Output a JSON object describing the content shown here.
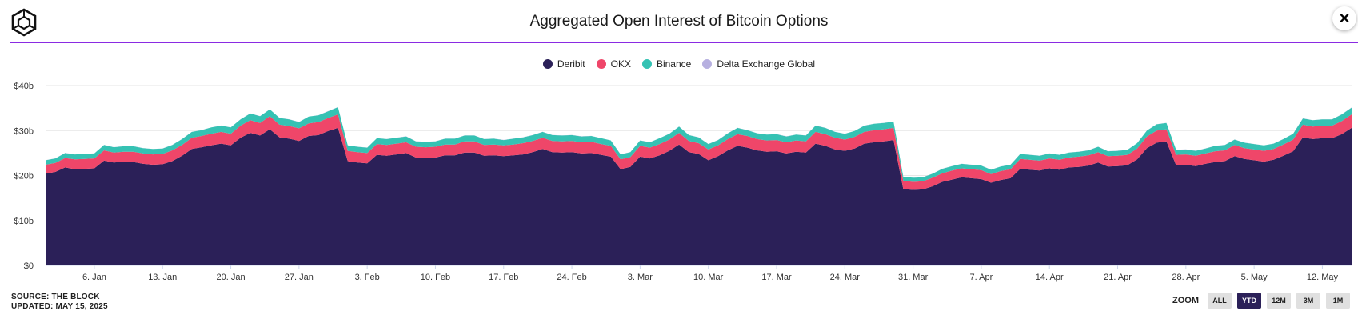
{
  "header": {
    "title": "Aggregated Open Interest of Bitcoin Options",
    "close_label": "×"
  },
  "legend": [
    "Deribit",
    "OKX",
    "Binance",
    "Delta Exchange Global"
  ],
  "footer": {
    "source": "SOURCE: THE BLOCK",
    "updated": "UPDATED: MAY 15, 2025"
  },
  "zoom": {
    "label": "ZOOM",
    "buttons": [
      "ALL",
      "YTD",
      "12M",
      "3M",
      "1M"
    ],
    "active": "YTD"
  },
  "colors": {
    "deribit": "#2b2058",
    "okx": "#ef4669",
    "binance": "#35c2b3",
    "delta": "#b7b0e0",
    "rule": "#8a2be2"
  },
  "chart_data": {
    "type": "area",
    "stacked": true,
    "title": "Aggregated Open Interest of Bitcoin Options",
    "x": [
      "Jan 1",
      "Jan 2",
      "Jan 3",
      "Jan 4",
      "Jan 5",
      "Jan 6",
      "Jan 7",
      "Jan 8",
      "Jan 9",
      "Jan 10",
      "Jan 11",
      "Jan 12",
      "Jan 13",
      "Jan 14",
      "Jan 15",
      "Jan 16",
      "Jan 17",
      "Jan 18",
      "Jan 19",
      "Jan 20",
      "Jan 21",
      "Jan 22",
      "Jan 23",
      "Jan 24",
      "Jan 25",
      "Jan 26",
      "Jan 27",
      "Jan 28",
      "Jan 29",
      "Jan 30",
      "Jan 31",
      "Feb 1",
      "Feb 2",
      "Feb 3",
      "Feb 4",
      "Feb 5",
      "Feb 6",
      "Feb 7",
      "Feb 8",
      "Feb 9",
      "Feb 10",
      "Feb 11",
      "Feb 12",
      "Feb 13",
      "Feb 14",
      "Feb 15",
      "Feb 16",
      "Feb 17",
      "Feb 18",
      "Feb 19",
      "Feb 20",
      "Feb 21",
      "Feb 22",
      "Feb 23",
      "Feb 24",
      "Feb 25",
      "Feb 26",
      "Feb 27",
      "Feb 28",
      "Mar 1",
      "Mar 2",
      "Mar 3",
      "Mar 4",
      "Mar 5",
      "Mar 6",
      "Mar 7",
      "Mar 8",
      "Mar 9",
      "Mar 10",
      "Mar 11",
      "Mar 12",
      "Mar 13",
      "Mar 14",
      "Mar 15",
      "Mar 16",
      "Mar 17",
      "Mar 18",
      "Mar 19",
      "Mar 20",
      "Mar 21",
      "Mar 22",
      "Mar 23",
      "Mar 24",
      "Mar 25",
      "Mar 26",
      "Mar 27",
      "Mar 28",
      "Mar 29",
      "Mar 30",
      "Mar 31",
      "Apr 1",
      "Apr 2",
      "Apr 3",
      "Apr 4",
      "Apr 5",
      "Apr 6",
      "Apr 7",
      "Apr 8",
      "Apr 9",
      "Apr 10",
      "Apr 11",
      "Apr 12",
      "Apr 13",
      "Apr 14",
      "Apr 15",
      "Apr 16",
      "Apr 17",
      "Apr 18",
      "Apr 19",
      "Apr 20",
      "Apr 21",
      "Apr 22",
      "Apr 23",
      "Apr 24",
      "Apr 25",
      "Apr 26",
      "Apr 27",
      "Apr 28",
      "Apr 29",
      "Apr 30",
      "May 1",
      "May 2",
      "May 3",
      "May 4",
      "May 5",
      "May 6",
      "May 7",
      "May 8",
      "May 9",
      "May 10",
      "May 11",
      "May 12",
      "May 13",
      "May 14",
      "May 15"
    ],
    "series": [
      {
        "name": "Deribit",
        "values": [
          20.4,
          20.8,
          21.8,
          21.4,
          21.5,
          21.6,
          23.3,
          22.9,
          23.1,
          23.0,
          22.6,
          22.4,
          22.5,
          23.2,
          24.4,
          25.9,
          26.3,
          26.7,
          27.1,
          26.7,
          28.4,
          29.5,
          28.9,
          30.3,
          28.5,
          28.2,
          27.7,
          28.8,
          29.0,
          29.9,
          30.6,
          23.2,
          22.9,
          22.7,
          24.6,
          24.4,
          24.7,
          25.0,
          24.0,
          23.9,
          24.0,
          24.5,
          24.5,
          25.1,
          25.1,
          24.4,
          24.5,
          24.3,
          24.5,
          24.7,
          25.2,
          25.9,
          25.2,
          25.1,
          25.2,
          24.9,
          25.0,
          24.6,
          24.2,
          21.4,
          21.9,
          24.2,
          23.8,
          24.5,
          25.5,
          26.9,
          25.2,
          24.8,
          23.4,
          24.3,
          25.6,
          26.6,
          26.2,
          25.6,
          25.3,
          25.4,
          24.9,
          25.3,
          25.1,
          27.1,
          26.6,
          25.8,
          25.5,
          26.0,
          27.1,
          27.4,
          27.6,
          27.9,
          17.0,
          16.8,
          16.9,
          17.6,
          18.6,
          19.1,
          19.6,
          19.4,
          19.2,
          18.4,
          19.0,
          19.4,
          21.5,
          21.3,
          21.1,
          21.6,
          21.3,
          21.8,
          21.9,
          22.2,
          22.9,
          22.0,
          22.1,
          22.3,
          23.6,
          26.1,
          27.3,
          27.6,
          22.3,
          22.4,
          22.1,
          22.6,
          23.0,
          23.2,
          24.3,
          23.7,
          23.4,
          23.1,
          23.5,
          24.4,
          25.4,
          28.5,
          28.1,
          28.3,
          28.3,
          29.2,
          30.6
        ]
      },
      {
        "name": "OKX",
        "values": [
          2.0,
          2.0,
          2.1,
          2.2,
          2.2,
          2.2,
          2.3,
          2.2,
          2.2,
          2.3,
          2.3,
          2.3,
          2.3,
          2.4,
          2.4,
          2.5,
          2.5,
          2.6,
          2.6,
          2.6,
          2.7,
          2.8,
          2.8,
          2.9,
          2.8,
          2.8,
          2.8,
          2.8,
          2.9,
          2.9,
          3.0,
          2.3,
          2.3,
          2.3,
          2.4,
          2.4,
          2.4,
          2.4,
          2.4,
          2.4,
          2.4,
          2.4,
          2.4,
          2.5,
          2.5,
          2.4,
          2.4,
          2.4,
          2.4,
          2.5,
          2.5,
          2.5,
          2.5,
          2.5,
          2.5,
          2.5,
          2.5,
          2.4,
          2.4,
          2.2,
          2.2,
          2.4,
          2.4,
          2.5,
          2.5,
          2.6,
          2.5,
          2.4,
          2.4,
          2.4,
          2.5,
          2.6,
          2.6,
          2.5,
          2.5,
          2.5,
          2.5,
          2.5,
          2.5,
          2.6,
          2.6,
          2.6,
          2.5,
          2.6,
          2.6,
          2.7,
          2.7,
          2.7,
          1.8,
          1.8,
          1.8,
          1.9,
          1.9,
          2.0,
          2.0,
          2.0,
          2.0,
          1.9,
          2.0,
          2.0,
          2.2,
          2.2,
          2.2,
          2.2,
          2.2,
          2.2,
          2.3,
          2.3,
          2.3,
          2.3,
          2.3,
          2.3,
          2.4,
          2.6,
          2.7,
          2.7,
          2.3,
          2.3,
          2.3,
          2.3,
          2.4,
          2.4,
          2.5,
          2.4,
          2.4,
          2.4,
          2.4,
          2.5,
          2.6,
          2.8,
          2.8,
          2.8,
          2.8,
          2.9,
          3.0
        ]
      },
      {
        "name": "Binance",
        "values": [
          1.0,
          1.0,
          1.1,
          1.1,
          1.1,
          1.1,
          1.2,
          1.2,
          1.2,
          1.2,
          1.2,
          1.2,
          1.2,
          1.2,
          1.3,
          1.3,
          1.3,
          1.4,
          1.4,
          1.4,
          1.4,
          1.5,
          1.5,
          1.5,
          1.5,
          1.5,
          1.4,
          1.5,
          1.5,
          1.5,
          1.6,
          1.2,
          1.2,
          1.2,
          1.3,
          1.3,
          1.3,
          1.3,
          1.2,
          1.2,
          1.2,
          1.3,
          1.3,
          1.3,
          1.3,
          1.3,
          1.3,
          1.2,
          1.3,
          1.3,
          1.3,
          1.3,
          1.3,
          1.3,
          1.3,
          1.3,
          1.3,
          1.3,
          1.2,
          1.1,
          1.1,
          1.2,
          1.2,
          1.3,
          1.3,
          1.4,
          1.3,
          1.3,
          1.2,
          1.2,
          1.3,
          1.4,
          1.3,
          1.3,
          1.3,
          1.3,
          1.3,
          1.3,
          1.3,
          1.4,
          1.4,
          1.3,
          1.3,
          1.3,
          1.4,
          1.4,
          1.4,
          1.4,
          0.9,
          0.9,
          0.9,
          0.9,
          1.0,
          1.0,
          1.0,
          1.0,
          1.0,
          1.0,
          1.0,
          1.0,
          1.1,
          1.1,
          1.1,
          1.1,
          1.1,
          1.1,
          1.1,
          1.1,
          1.2,
          1.1,
          1.1,
          1.1,
          1.2,
          1.3,
          1.4,
          1.4,
          1.1,
          1.1,
          1.1,
          1.1,
          1.2,
          1.2,
          1.2,
          1.2,
          1.2,
          1.2,
          1.2,
          1.2,
          1.3,
          1.4,
          1.4,
          1.4,
          1.4,
          1.5,
          1.5
        ]
      },
      {
        "name": "Delta Exchange Global",
        "values": [
          0.02,
          0.02,
          0.02,
          0.02,
          0.02,
          0.02,
          0.02,
          0.02,
          0.02,
          0.02,
          0.02,
          0.02,
          0.02,
          0.02,
          0.02,
          0.02,
          0.02,
          0.02,
          0.02,
          0.02,
          0.02,
          0.02,
          0.02,
          0.02,
          0.02,
          0.02,
          0.02,
          0.02,
          0.02,
          0.02,
          0.02,
          0.02,
          0.02,
          0.02,
          0.02,
          0.02,
          0.02,
          0.02,
          0.02,
          0.02,
          0.02,
          0.02,
          0.02,
          0.02,
          0.02,
          0.02,
          0.02,
          0.02,
          0.02,
          0.02,
          0.02,
          0.02,
          0.02,
          0.02,
          0.02,
          0.02,
          0.02,
          0.02,
          0.02,
          0.02,
          0.02,
          0.02,
          0.02,
          0.02,
          0.02,
          0.02,
          0.02,
          0.02,
          0.02,
          0.02,
          0.02,
          0.02,
          0.02,
          0.02,
          0.02,
          0.02,
          0.02,
          0.02,
          0.02,
          0.02,
          0.02,
          0.02,
          0.02,
          0.02,
          0.02,
          0.02,
          0.02,
          0.02,
          0.02,
          0.02,
          0.02,
          0.02,
          0.02,
          0.02,
          0.02,
          0.02,
          0.02,
          0.02,
          0.02,
          0.02,
          0.02,
          0.02,
          0.02,
          0.02,
          0.02,
          0.02,
          0.02,
          0.02,
          0.02,
          0.02,
          0.02,
          0.02,
          0.02,
          0.02,
          0.02,
          0.02,
          0.02,
          0.02,
          0.02,
          0.02,
          0.02,
          0.02,
          0.02,
          0.02,
          0.02,
          0.02,
          0.02,
          0.02,
          0.02,
          0.02,
          0.02,
          0.02,
          0.02,
          0.02,
          0.02
        ]
      }
    ],
    "xticks": [
      "6. Jan",
      "13. Jan",
      "20. Jan",
      "27. Jan",
      "3. Feb",
      "10. Feb",
      "17. Feb",
      "24. Feb",
      "3. Mar",
      "10. Mar",
      "17. Mar",
      "24. Mar",
      "31. Mar",
      "7. Apr",
      "14. Apr",
      "21. Apr",
      "28. Apr",
      "5. May",
      "12. May"
    ],
    "xtick_positions": [
      "Jan 6",
      "Jan 13",
      "Jan 20",
      "Jan 27",
      "Feb 3",
      "Feb 10",
      "Feb 17",
      "Feb 24",
      "Mar 3",
      "Mar 10",
      "Mar 17",
      "Mar 24",
      "Mar 31",
      "Apr 7",
      "Apr 14",
      "Apr 21",
      "Apr 28",
      "May 5",
      "May 12"
    ],
    "yticks": [
      0,
      10,
      20,
      30,
      40
    ],
    "ytick_labels": [
      "$0",
      "$10b",
      "$20b",
      "$30b",
      "$40b"
    ],
    "ylim": [
      0,
      40
    ],
    "grid": "horizontal",
    "legend_position": "top-center"
  }
}
